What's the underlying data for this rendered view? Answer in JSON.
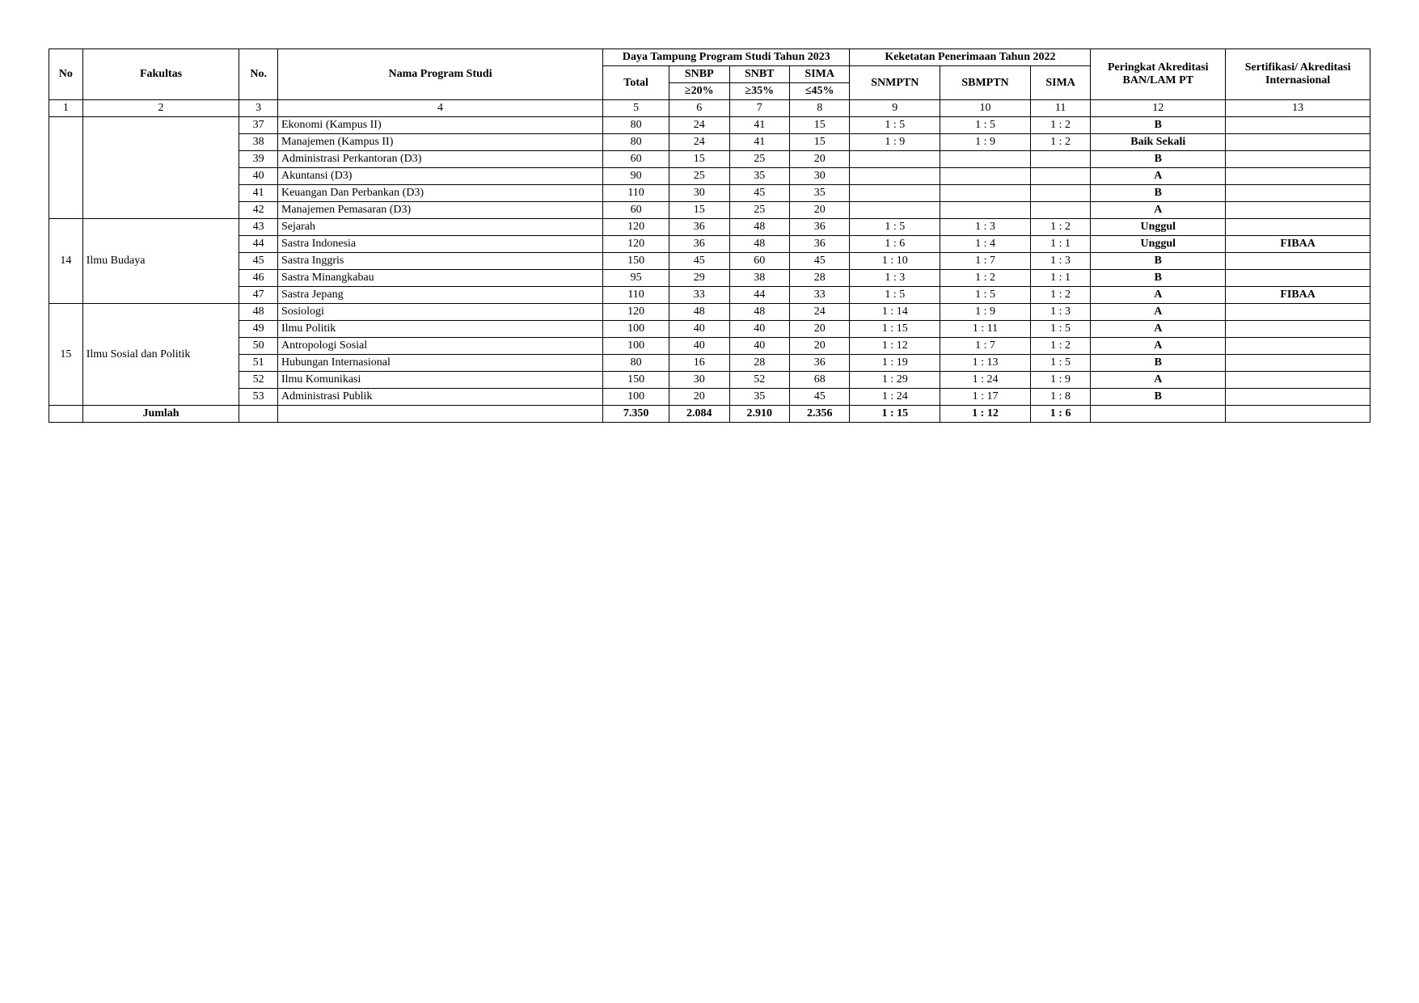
{
  "headers": {
    "no": "No",
    "fakultas": "Fakultas",
    "nom": "No.",
    "prog": "Nama Program Studi",
    "daya": "Daya Tampung Program Studi Tahun 2023",
    "total": "Total",
    "snbp": "SNBP",
    "snbt": "SNBT",
    "sima": "SIMA",
    "p20": "≥20%",
    "p35": "≥35%",
    "p45": "≤45%",
    "keketatan": "Keketatan Penerimaan Tahun 2022",
    "snmptn": "SNMPTN",
    "sbmptn": "SBMPTN",
    "ksima": "SIMA",
    "peringkat": "Peringkat Akreditasi BAN/LAM PT",
    "sertif": "Sertifikasi/ Akreditasi Internasional"
  },
  "colnums": [
    "1",
    "2",
    "3",
    "4",
    "5",
    "6",
    "7",
    "8",
    "9",
    "10",
    "11",
    "12",
    "13"
  ],
  "groups": [
    {
      "no": "",
      "fak": "",
      "rows": [
        {
          "n": "37",
          "p": "Ekonomi (Kampus II)",
          "t": "80",
          "a": "24",
          "b": "41",
          "c": "15",
          "k1": "1 : 5",
          "k2": "1 : 5",
          "k3": "1 : 2",
          "ak": "B",
          "akb": true,
          "int": ""
        },
        {
          "n": "38",
          "p": "Manajemen (Kampus II)",
          "t": "80",
          "a": "24",
          "b": "41",
          "c": "15",
          "k1": "1 : 9",
          "k2": "1 : 9",
          "k3": "1 : 2",
          "ak": "Baik Sekali",
          "akb": true,
          "int": ""
        },
        {
          "n": "39",
          "p": "Administrasi Perkantoran (D3)",
          "t": "60",
          "a": "15",
          "b": "25",
          "c": "20",
          "k1": "",
          "k2": "",
          "k3": "",
          "ak": "B",
          "akb": true,
          "int": ""
        },
        {
          "n": "40",
          "p": "Akuntansi (D3)",
          "t": "90",
          "a": "25",
          "b": "35",
          "c": "30",
          "k1": "",
          "k2": "",
          "k3": "",
          "ak": "A",
          "akb": true,
          "int": ""
        },
        {
          "n": "41",
          "p": "Keuangan Dan Perbankan (D3)",
          "t": "110",
          "a": "30",
          "b": "45",
          "c": "35",
          "k1": "",
          "k2": "",
          "k3": "",
          "ak": "B",
          "akb": true,
          "int": ""
        },
        {
          "n": "42",
          "p": "Manajemen Pemasaran (D3)",
          "t": "60",
          "a": "15",
          "b": "25",
          "c": "20",
          "k1": "",
          "k2": "",
          "k3": "",
          "ak": "A",
          "akb": true,
          "int": ""
        }
      ]
    },
    {
      "no": "14",
      "fak": "Ilmu Budaya",
      "rows": [
        {
          "n": "43",
          "p": "Sejarah",
          "t": "120",
          "a": "36",
          "b": "48",
          "c": "36",
          "k1": "1 : 5",
          "k2": "1 : 3",
          "k3": "1 : 2",
          "ak": "Unggul",
          "akb": true,
          "int": ""
        },
        {
          "n": "44",
          "p": "Sastra Indonesia",
          "t": "120",
          "a": "36",
          "b": "48",
          "c": "36",
          "k1": "1 : 6",
          "k2": "1 : 4",
          "k3": "1 : 1",
          "ak": "Unggul",
          "akb": true,
          "int": "FIBAA",
          "intb": true
        },
        {
          "n": "45",
          "p": "Sastra Inggris",
          "t": "150",
          "a": "45",
          "b": "60",
          "c": "45",
          "k1": "1 : 10",
          "k2": "1 : 7",
          "k3": "1 : 3",
          "ak": "B",
          "akb": true,
          "int": ""
        },
        {
          "n": "46",
          "p": "Sastra Minangkabau",
          "t": "95",
          "a": "29",
          "b": "38",
          "c": "28",
          "k1": "1 : 3",
          "k2": "1 : 2",
          "k3": "1 : 1",
          "ak": "B",
          "akb": true,
          "int": ""
        },
        {
          "n": "47",
          "p": "Sastra Jepang",
          "t": "110",
          "a": "33",
          "b": "44",
          "c": "33",
          "k1": "1 : 5",
          "k2": "1 : 5",
          "k3": "1 : 2",
          "ak": "A",
          "akb": true,
          "int": "FIBAA",
          "intb": true
        }
      ]
    },
    {
      "no": "15",
      "fak": "Ilmu Sosial dan Politik",
      "rows": [
        {
          "n": "48",
          "p": "Sosiologi",
          "t": "120",
          "a": "48",
          "b": "48",
          "c": "24",
          "k1": "1 : 14",
          "k2": "1 : 9",
          "k3": "1 : 3",
          "ak": "A",
          "akb": true,
          "int": ""
        },
        {
          "n": "49",
          "p": "Ilmu Politik",
          "t": "100",
          "a": "40",
          "b": "40",
          "c": "20",
          "k1": "1 : 15",
          "k2": "1 : 11",
          "k3": "1 : 5",
          "ak": "A",
          "akb": true,
          "int": ""
        },
        {
          "n": "50",
          "p": "Antropologi Sosial",
          "t": "100",
          "a": "40",
          "b": "40",
          "c": "20",
          "k1": "1 : 12",
          "k2": "1 : 7",
          "k3": "1 : 2",
          "ak": "A",
          "akb": true,
          "int": ""
        },
        {
          "n": "51",
          "p": "Hubungan Internasional",
          "t": "80",
          "a": "16",
          "b": "28",
          "c": "36",
          "k1": "1 : 19",
          "k2": "1 : 13",
          "k3": "1 : 5",
          "ak": "B",
          "akb": true,
          "int": ""
        },
        {
          "n": "52",
          "p": "Ilmu Komunikasi",
          "t": "150",
          "a": "30",
          "b": "52",
          "c": "68",
          "k1": "1 : 29",
          "k2": "1 : 24",
          "k3": "1 : 9",
          "ak": "A",
          "akb": true,
          "int": ""
        },
        {
          "n": "53",
          "p": "Administrasi Publik",
          "t": "100",
          "a": "20",
          "b": "35",
          "c": "45",
          "k1": "1 : 24",
          "k2": "1 : 17",
          "k3": "1 : 8",
          "ak": "B",
          "akb": true,
          "int": ""
        }
      ]
    }
  ],
  "jumlah": {
    "label": "Jumlah",
    "t": "7.350",
    "a": "2.084",
    "b": "2.910",
    "c": "2.356",
    "k1": "1 : 15",
    "k2": "1 : 12",
    "k3": "1 : 6"
  }
}
